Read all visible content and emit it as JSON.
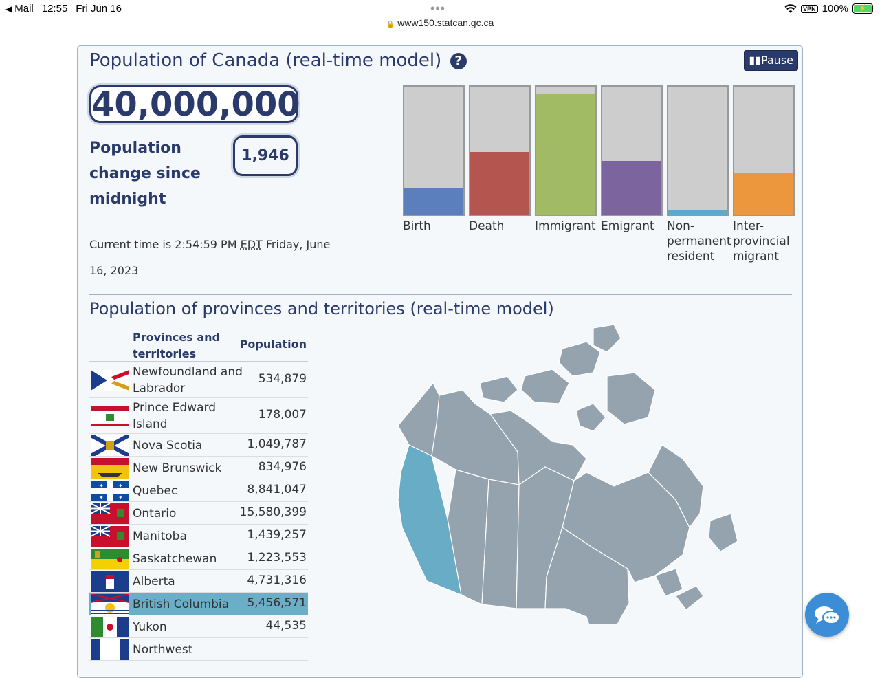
{
  "statusbar": {
    "back_app": "Mail",
    "time": "12:55",
    "date": "Fri Jun 16",
    "vpn": "VPN",
    "battery": "100%",
    "url": "www150.statcan.gc.ca"
  },
  "header": {
    "title": "Population of Canada (real-time model)",
    "help_icon": "?",
    "pause_label": "Pause"
  },
  "population": {
    "total": "40,000,000",
    "change_label": "Population change since midnight",
    "change_value": "1,946",
    "time_prefix": "Current time is 2:54:59 PM",
    "time_zone": "EDT",
    "time_suffix": "Friday, June 16, 2023"
  },
  "components": [
    {
      "label": "Birth",
      "fill": 0.21,
      "color": "#5b7fbd"
    },
    {
      "label": "Death",
      "fill": 0.49,
      "color": "#b5554f"
    },
    {
      "label": "Immigrant",
      "fill": 0.94,
      "color": "#a0bb64"
    },
    {
      "label": "Emigrant",
      "fill": 0.42,
      "color": "#7c659e"
    },
    {
      "label": "Non-permanent resident",
      "fill": 0.03,
      "color": "#5fa8c8"
    },
    {
      "label": "Inter-provincial migrant",
      "fill": 0.32,
      "color": "#ec963d"
    }
  ],
  "provinces_section": {
    "title": "Population of provinces and territories (real-time model)",
    "col_name": "Provinces and territories",
    "col_pop": "Population",
    "rows": [
      {
        "name": "Newfoundland and Labrador",
        "pop": "534,879",
        "flag": "newfoundland-flag-icon",
        "highlight": false
      },
      {
        "name": "Prince Edward Island",
        "pop": "178,007",
        "flag": "pei-flag-icon",
        "highlight": false
      },
      {
        "name": "Nova Scotia",
        "pop": "1,049,787",
        "flag": "nova-scotia-flag-icon",
        "highlight": false
      },
      {
        "name": "New Brunswick",
        "pop": "834,976",
        "flag": "new-brunswick-flag-icon",
        "highlight": false
      },
      {
        "name": "Quebec",
        "pop": "8,841,047",
        "flag": "quebec-flag-icon",
        "highlight": false
      },
      {
        "name": "Ontario",
        "pop": "15,580,399",
        "flag": "ontario-flag-icon",
        "highlight": false
      },
      {
        "name": "Manitoba",
        "pop": "1,439,257",
        "flag": "manitoba-flag-icon",
        "highlight": false
      },
      {
        "name": "Saskatchewan",
        "pop": "1,223,553",
        "flag": "saskatchewan-flag-icon",
        "highlight": false
      },
      {
        "name": "Alberta",
        "pop": "4,731,316",
        "flag": "alberta-flag-icon",
        "highlight": false
      },
      {
        "name": "British Columbia",
        "pop": "5,456,571",
        "flag": "bc-flag-icon",
        "highlight": true
      },
      {
        "name": "Yukon",
        "pop": "44,535",
        "flag": "yukon-flag-icon",
        "highlight": false
      },
      {
        "name": "Northwest",
        "pop": "",
        "flag": "nwt-flag-icon",
        "highlight": false
      }
    ]
  },
  "chat": {
    "icon": "chat-bubbles-icon"
  }
}
